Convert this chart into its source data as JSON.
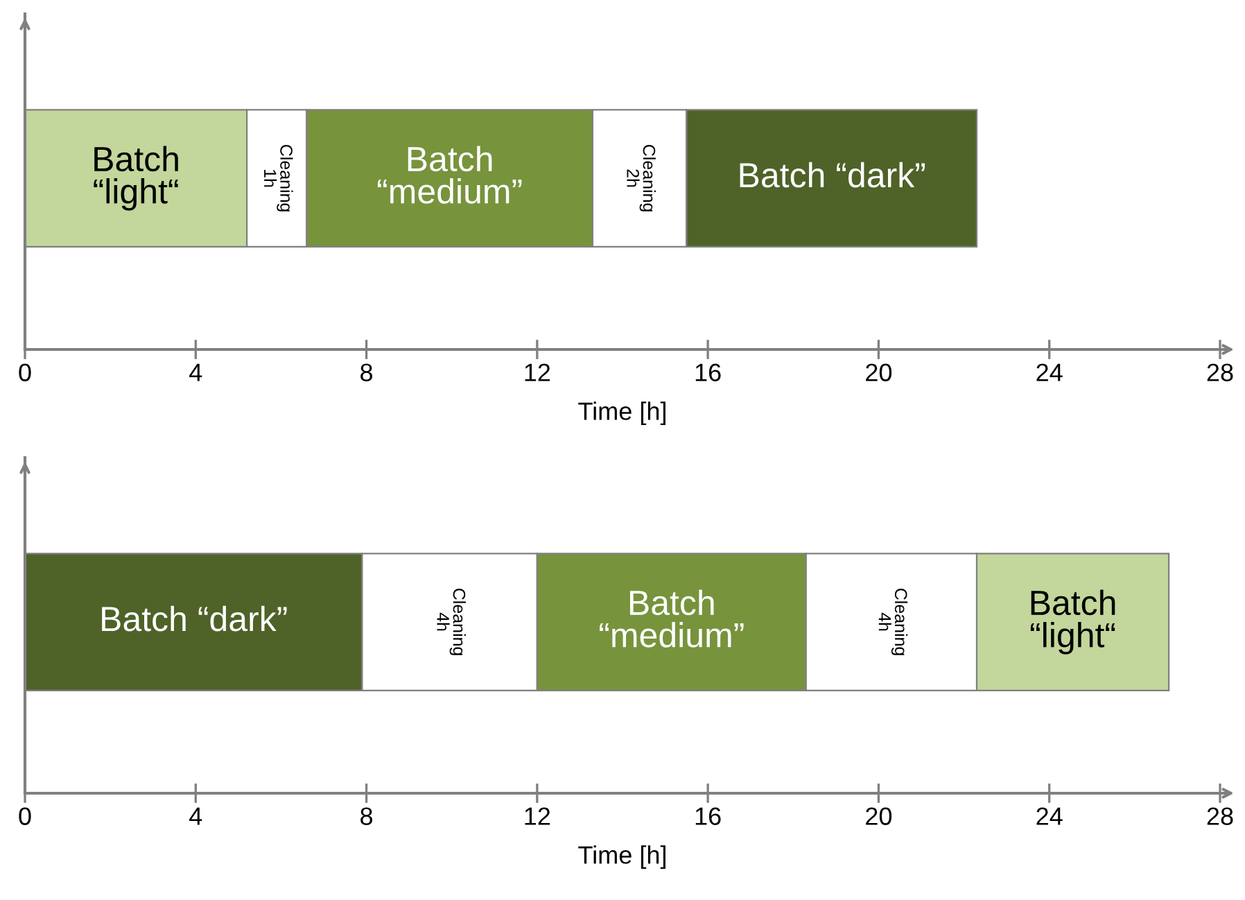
{
  "chart_data": [
    {
      "type": "bar",
      "orientation": "horizontal",
      "stacked": true,
      "categories": [
        null
      ],
      "xlabel": "Time [h]",
      "xlim": [
        0,
        28
      ],
      "xticks": [
        0,
        4,
        8,
        12,
        16,
        20,
        24,
        28
      ],
      "tick_labels": "x",
      "legend": false,
      "grid": false,
      "series": [
        {
          "name": "Batch\n“light“",
          "color": "#c3d69b",
          "values": [
            5.2
          ]
        },
        {
          "name": "Cleaning\n1h",
          "color": "#ffffff",
          "values": [
            1.4
          ]
        },
        {
          "name": "Batch\n“medium”",
          "color": "#77933c",
          "values": [
            6.7
          ]
        },
        {
          "name": "Cleaning\n2h",
          "color": "#ffffff",
          "values": [
            2.2
          ]
        },
        {
          "name": "Batch “dark”",
          "color": "#4f6228",
          "values": [
            6.8
          ]
        }
      ]
    },
    {
      "type": "bar",
      "orientation": "horizontal",
      "stacked": true,
      "categories": [
        null
      ],
      "xlabel": "Time [h]",
      "xlim": [
        0,
        28
      ],
      "xticks": [
        0,
        4,
        8,
        12,
        16,
        20,
        24,
        28
      ],
      "tick_labels": "x",
      "legend": false,
      "grid": false,
      "series": [
        {
          "name": "Batch “dark”",
          "color": "#4f6228",
          "values": [
            7.9
          ]
        },
        {
          "name": "Cleaning\n4h",
          "color": "#ffffff",
          "values": [
            4.1
          ]
        },
        {
          "name": "Batch\n“medium”",
          "color": "#77933c",
          "values": [
            6.3
          ]
        },
        {
          "name": "Cleaning\n4h",
          "color": "#ffffff",
          "values": [
            4.0
          ]
        },
        {
          "name": "Batch\n“light“",
          "color": "#c3d69b",
          "values": [
            4.5
          ]
        }
      ]
    }
  ]
}
